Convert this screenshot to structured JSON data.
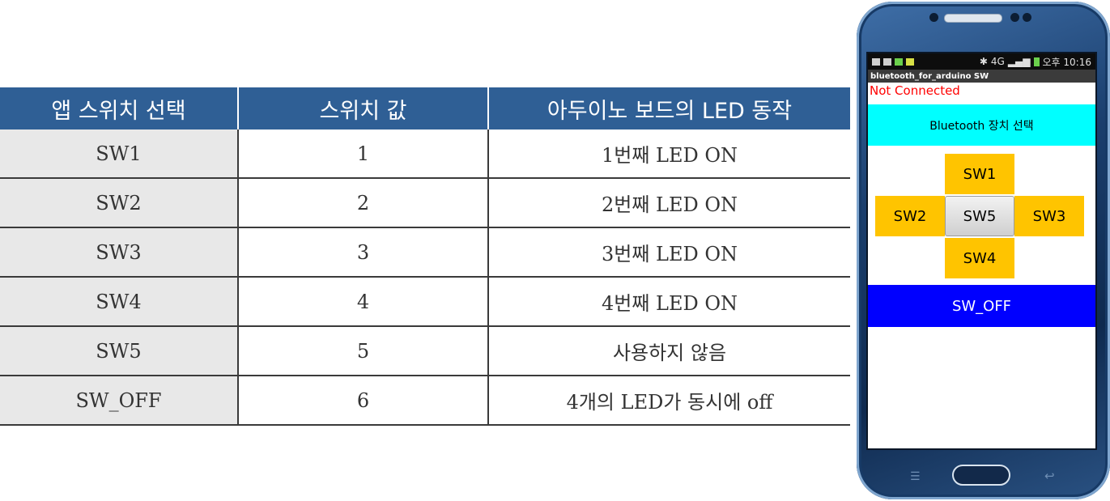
{
  "table": {
    "headers": [
      "앱 스위치 선택",
      "스위치 값",
      "아두이노 보드의 LED 동작"
    ],
    "rows": [
      [
        "SW1",
        "1",
        "1번째 LED ON"
      ],
      [
        "SW2",
        "2",
        "2번째 LED ON"
      ],
      [
        "SW3",
        "3",
        "3번째 LED ON"
      ],
      [
        "SW4",
        "4",
        "4번째 LED ON"
      ],
      [
        "SW5",
        "5",
        "사용하지 않음"
      ],
      [
        "SW_OFF",
        "6",
        "4개의 LED가 동시에 off"
      ]
    ],
    "header_color": "#2f5f95"
  },
  "phone": {
    "status_bar": {
      "signal": "4G",
      "time": "오후 10:16"
    },
    "app_title": "bluetooth_for_arduino SW",
    "connection_status": "Not Connected",
    "bluetooth_button": "Bluetooth 장치 선택",
    "switches": {
      "sw1": "SW1",
      "sw2": "SW2",
      "sw3": "SW3",
      "sw4": "SW4",
      "sw5": "SW5",
      "sw_off": "SW_OFF"
    },
    "colors": {
      "bluetooth_button": "#00ffff",
      "switch": "#ffc400",
      "sw_off": "#0000ff",
      "status_text": "#ff0000"
    }
  }
}
